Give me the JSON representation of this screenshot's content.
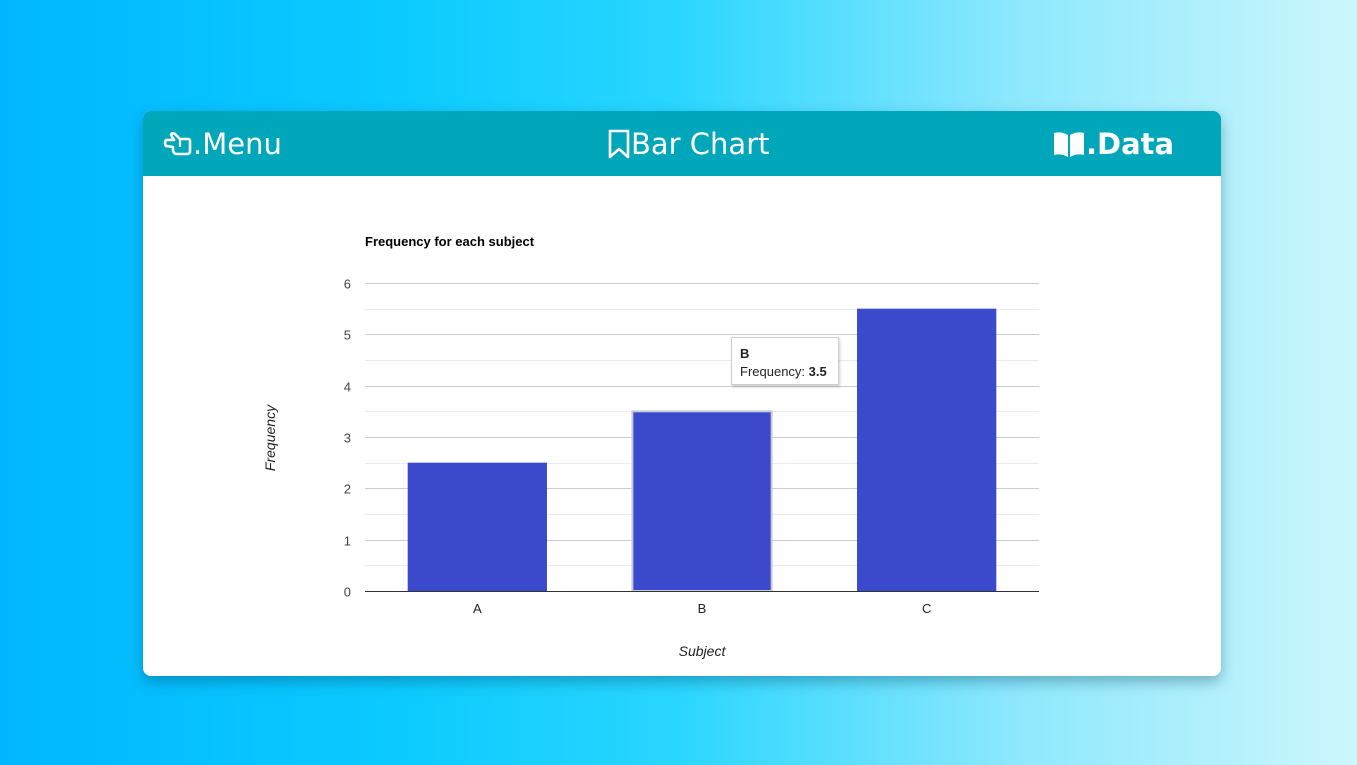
{
  "header": {
    "menu_label": ".Menu",
    "title_label": "Bar Chart",
    "data_label": ".Data",
    "icons": {
      "menu": "pointing-hand-icon",
      "title": "bookmark-icon",
      "data": "open-book-icon"
    }
  },
  "colors": {
    "header_bg": "#00a6b9",
    "bar": "#3b4acc"
  },
  "chart_data": {
    "type": "bar",
    "title": "Frequency for each subject",
    "xlabel": "Subject",
    "ylabel": "Frequency",
    "categories": [
      "A",
      "B",
      "C"
    ],
    "values": [
      2.5,
      3.5,
      5.5
    ],
    "ylim": [
      0,
      6
    ],
    "yticks": [
      0,
      1,
      2,
      3,
      4,
      5,
      6
    ],
    "grid": true,
    "legend": "none"
  },
  "tooltip": {
    "category": "B",
    "label": "Frequency: ",
    "value": "3.5"
  }
}
